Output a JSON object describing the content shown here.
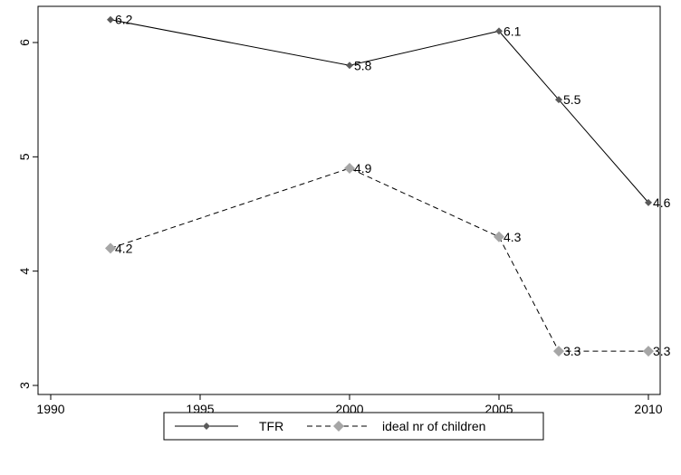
{
  "chart_data": {
    "type": "line",
    "xlim": [
      1990,
      2010
    ],
    "ylim": [
      3,
      6.2
    ],
    "x_ticks": [
      1990,
      1995,
      2000,
      2005,
      2010
    ],
    "y_ticks": [
      3,
      4,
      5,
      6
    ],
    "grid": false,
    "legend_position": "bottom",
    "series": [
      {
        "name": "TFR",
        "line_style": "solid",
        "color": "#000000",
        "marker_color": "#5a5a5a",
        "x": [
          1992,
          2000,
          2005,
          2007,
          2010
        ],
        "values": [
          6.2,
          5.8,
          6.1,
          5.5,
          4.6
        ],
        "labels": [
          "6.2",
          "5.8",
          "6.1",
          "5.5",
          "4.6"
        ]
      },
      {
        "name": "ideal nr of children",
        "line_style": "dashed",
        "color": "#000000",
        "marker_color": "#a6a6a6",
        "x": [
          1992,
          2000,
          2005,
          2007,
          2010
        ],
        "values": [
          4.2,
          4.9,
          4.3,
          3.3,
          3.3
        ],
        "labels": [
          "4.2",
          "4.9",
          "4.3",
          "3.3",
          "3.3"
        ]
      }
    ]
  }
}
